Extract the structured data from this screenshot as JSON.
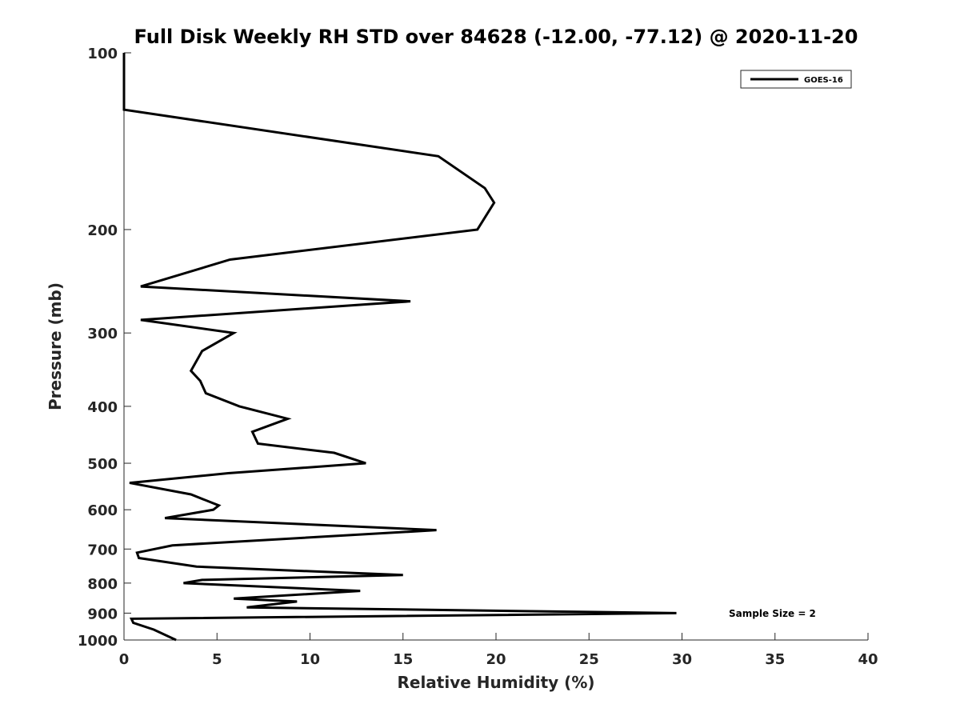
{
  "chart_data": {
    "type": "line",
    "title": "Full Disk Weekly RH STD over 84628 (-12.00, -77.12) @ 2020-11-20",
    "xlabel": "Relative Humidity (%)",
    "ylabel": "Pressure (mb)",
    "xlim": [
      0,
      40
    ],
    "ylim": [
      100,
      1000
    ],
    "y_scale": "log",
    "y_reversed": true,
    "grid": false,
    "legend_position": "top-right",
    "x_ticks": [
      "0",
      "5",
      "10",
      "15",
      "20",
      "25",
      "30",
      "35",
      "40"
    ],
    "y_ticks": [
      "100",
      "200",
      "300",
      "400",
      "500",
      "600",
      "700",
      "800",
      "900",
      "1000"
    ],
    "series": [
      {
        "name": "GOES-16",
        "color": "#000000",
        "points": [
          [
            0.0,
            100
          ],
          [
            0.0,
            125
          ],
          [
            16.9,
            150
          ],
          [
            19.4,
            170
          ],
          [
            19.9,
            180
          ],
          [
            19.0,
            200
          ],
          [
            5.7,
            225
          ],
          [
            0.9,
            250
          ],
          [
            15.4,
            265
          ],
          [
            0.9,
            285
          ],
          [
            5.9,
            300
          ],
          [
            4.2,
            322
          ],
          [
            3.6,
            348
          ],
          [
            4.1,
            362
          ],
          [
            4.4,
            380
          ],
          [
            6.2,
            400
          ],
          [
            8.8,
            420
          ],
          [
            6.9,
            442
          ],
          [
            7.2,
            463
          ],
          [
            11.3,
            480
          ],
          [
            13.0,
            500
          ],
          [
            5.6,
            520
          ],
          [
            0.3,
            540
          ],
          [
            3.6,
            565
          ],
          [
            5.1,
            590
          ],
          [
            4.8,
            600
          ],
          [
            2.2,
            620
          ],
          [
            16.8,
            650
          ],
          [
            2.6,
            690
          ],
          [
            0.7,
            710
          ],
          [
            0.8,
            725
          ],
          [
            3.9,
            750
          ],
          [
            15.0,
            775
          ],
          [
            4.2,
            790
          ],
          [
            3.2,
            800
          ],
          [
            12.7,
            825
          ],
          [
            5.9,
            850
          ],
          [
            9.3,
            860
          ],
          [
            6.6,
            880
          ],
          [
            29.7,
            900
          ],
          [
            0.4,
            920
          ],
          [
            0.5,
            935
          ],
          [
            1.6,
            960
          ],
          [
            2.8,
            1000
          ]
        ]
      }
    ],
    "annotation": "Sample Size = 2"
  }
}
